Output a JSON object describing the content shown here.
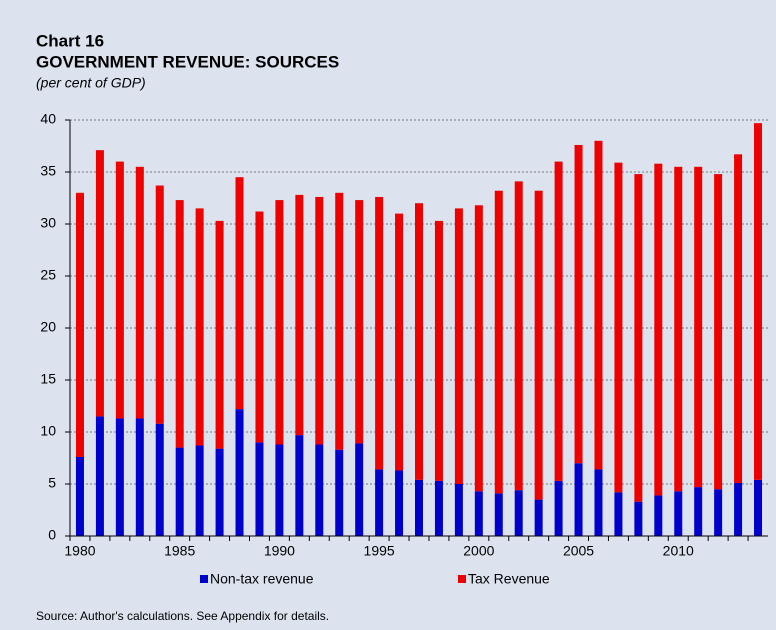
{
  "chart_data": {
    "type": "stacked_bar",
    "title": "Chart 16",
    "subtitle": "GOVERNMENT REVENUE: SOURCES",
    "y_label": "(per cent of GDP)",
    "source": "Source: Author's calculations. See Appendix for details.",
    "categories": [
      "1980",
      null,
      null,
      null,
      null,
      "1985",
      null,
      null,
      null,
      null,
      "1990",
      null,
      null,
      null,
      null,
      "1995",
      null,
      null,
      null,
      null,
      "2000",
      null,
      null,
      null,
      null,
      "2005",
      null,
      null,
      null,
      null,
      "2010",
      null,
      null,
      null,
      null
    ],
    "series": [
      {
        "name": "Non-tax revenue",
        "color": "#0000cc",
        "values": [
          7.6,
          11.5,
          11.3,
          11.3,
          10.8,
          8.5,
          8.7,
          8.4,
          12.2,
          9.0,
          8.8,
          9.7,
          8.8,
          8.3,
          8.9,
          6.4,
          6.3,
          5.4,
          5.3,
          5.0,
          4.3,
          4.1,
          4.4,
          3.5,
          5.3,
          7.0,
          6.4,
          4.2,
          3.3,
          3.9,
          4.3,
          4.7,
          4.5,
          5.1,
          5.4
        ]
      },
      {
        "name": "Tax Revenue",
        "color": "#ee0000",
        "values": [
          25.4,
          25.6,
          24.7,
          24.2,
          22.9,
          23.8,
          22.8,
          21.9,
          22.3,
          22.2,
          23.5,
          23.1,
          23.8,
          24.7,
          23.4,
          26.2,
          24.7,
          26.6,
          25.0,
          26.5,
          27.5,
          29.1,
          29.7,
          29.7,
          30.7,
          30.6,
          31.6,
          31.7,
          31.5,
          31.9,
          31.2,
          30.8,
          30.3,
          31.6,
          34.3
        ]
      }
    ],
    "ylim": [
      0,
      40
    ],
    "yticks": [
      0,
      5,
      10,
      15,
      20,
      25,
      30,
      35,
      40
    ],
    "grid": true
  }
}
